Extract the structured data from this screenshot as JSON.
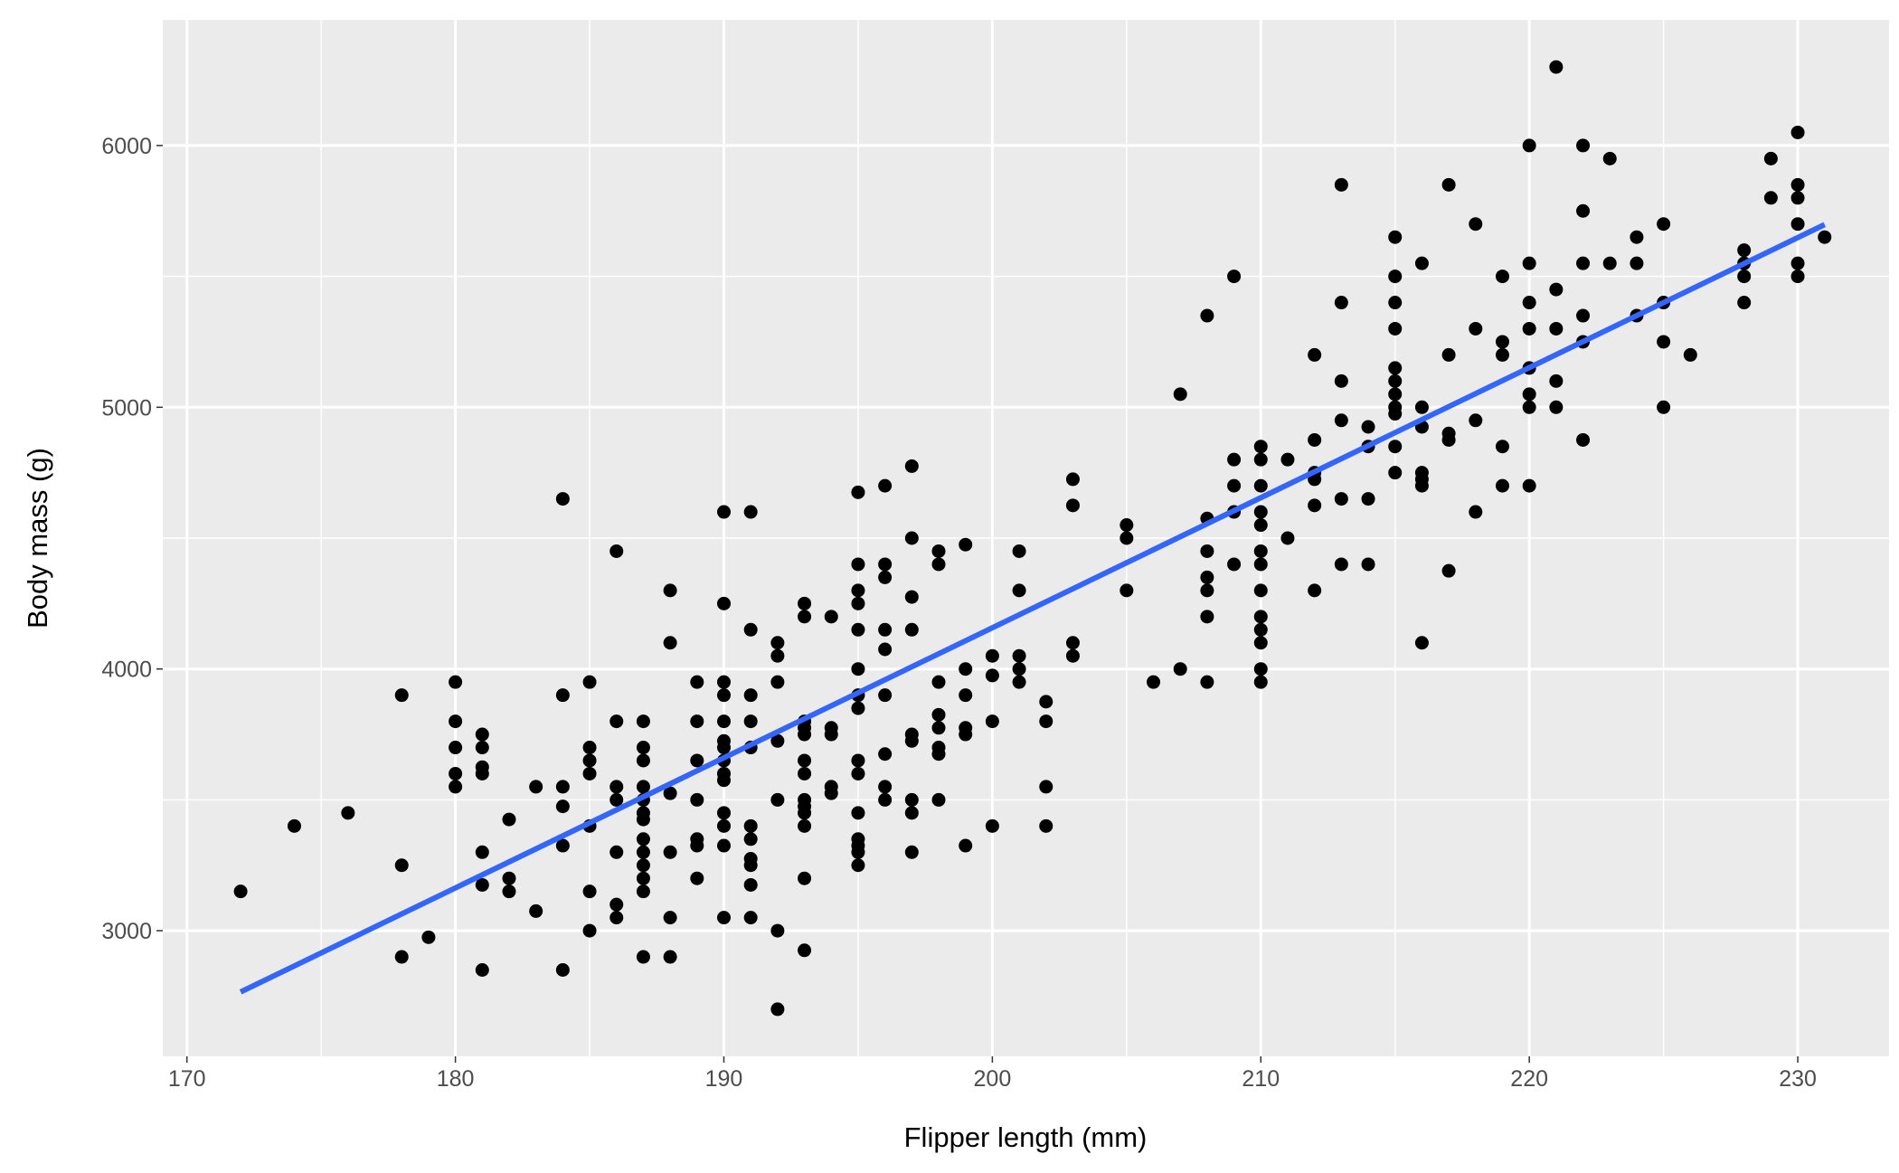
{
  "chart_data": {
    "type": "scatter",
    "title": "",
    "xlabel": "Flipper length (mm)",
    "ylabel": "Body mass (g)",
    "xlim": [
      169.1,
      233.4
    ],
    "ylim": [
      2520,
      6480
    ],
    "xticks": [
      170,
      180,
      190,
      200,
      210,
      220,
      230
    ],
    "yticks": [
      3000,
      4000,
      5000,
      6000
    ],
    "xtick_labels": [
      "170",
      "180",
      "190",
      "200",
      "210",
      "220",
      "230"
    ],
    "ytick_labels": [
      "3000",
      "4000",
      "5000",
      "6000"
    ],
    "grid": true,
    "legend": "none",
    "colors": {
      "panel": "#EBEBEB",
      "grid": "#FFFFFF",
      "points": "#000000",
      "fit_line": "#3366FF"
    },
    "fit_line": {
      "type": "linear",
      "x": [
        172,
        231
      ],
      "y": [
        2766,
        5698
      ]
    },
    "points": [
      {
        "x": 172,
        "y": [
          3150
        ]
      },
      {
        "x": 174,
        "y": [
          3400
        ]
      },
      {
        "x": 176,
        "y": [
          3450
        ]
      },
      {
        "x": 178,
        "y": [
          3900,
          3250,
          2900
        ]
      },
      {
        "x": 179,
        "y": [
          2975
        ]
      },
      {
        "x": 180,
        "y": [
          3950,
          3800,
          3700,
          3600,
          3550
        ]
      },
      {
        "x": 181,
        "y": [
          3750,
          3700,
          3625,
          3600,
          3300,
          3175,
          2850
        ]
      },
      {
        "x": 182,
        "y": [
          3425,
          3200,
          3150
        ]
      },
      {
        "x": 183,
        "y": [
          3550,
          3075
        ]
      },
      {
        "x": 184,
        "y": [
          4650,
          3900,
          3550,
          3475,
          3325,
          2850
        ]
      },
      {
        "x": 185,
        "y": [
          3950,
          3700,
          3650,
          3600,
          3400,
          3150,
          3000
        ]
      },
      {
        "x": 186,
        "y": [
          4450,
          3800,
          3550,
          3500,
          3300,
          3100,
          3050
        ]
      },
      {
        "x": 187,
        "y": [
          3800,
          3700,
          3650,
          3550,
          3500,
          3450,
          3425,
          3350,
          3300,
          3250,
          3200,
          3150,
          2900
        ]
      },
      {
        "x": 188,
        "y": [
          4300,
          4100,
          3525,
          3300,
          3050,
          2900
        ]
      },
      {
        "x": 189,
        "y": [
          3950,
          3800,
          3650,
          3500,
          3350,
          3325,
          3200
        ]
      },
      {
        "x": 190,
        "y": [
          4600,
          4250,
          3950,
          3900,
          3800,
          3725,
          3700,
          3650,
          3600,
          3575,
          3450,
          3400,
          3325,
          3050
        ]
      },
      {
        "x": 191,
        "y": [
          4600,
          4150,
          3900,
          3800,
          3700,
          3400,
          3350,
          3275,
          3250,
          3175,
          3050
        ]
      },
      {
        "x": 192,
        "y": [
          4100,
          4050,
          3950,
          3725,
          3500,
          3000,
          2700
        ]
      },
      {
        "x": 193,
        "y": [
          4250,
          4200,
          3800,
          3775,
          3750,
          3650,
          3600,
          3500,
          3475,
          3450,
          3400,
          3200,
          2925
        ]
      },
      {
        "x": 194,
        "y": [
          4200,
          3775,
          3750,
          3550,
          3525
        ]
      },
      {
        "x": 195,
        "y": [
          4675,
          4400,
          4300,
          4250,
          4150,
          4000,
          3900,
          3850,
          3650,
          3600,
          3450,
          3350,
          3325,
          3300,
          3250
        ]
      },
      {
        "x": 196,
        "y": [
          4700,
          4400,
          4350,
          4150,
          4075,
          3900,
          3675,
          3550,
          3500
        ]
      },
      {
        "x": 197,
        "y": [
          4775,
          4500,
          4275,
          4150,
          3750,
          3725,
          3500,
          3450,
          3300
        ]
      },
      {
        "x": 198,
        "y": [
          4450,
          4400,
          3950,
          3825,
          3775,
          3700,
          3675,
          3500
        ]
      },
      {
        "x": 199,
        "y": [
          4475,
          4000,
          3900,
          3775,
          3750,
          3325
        ]
      },
      {
        "x": 200,
        "y": [
          4050,
          3975,
          3800,
          3400
        ]
      },
      {
        "x": 201,
        "y": [
          4450,
          4300,
          4050,
          4000,
          3950
        ]
      },
      {
        "x": 202,
        "y": [
          3875,
          3800,
          3550,
          3400
        ]
      },
      {
        "x": 203,
        "y": [
          4725,
          4625,
          4100,
          4050
        ]
      },
      {
        "x": 205,
        "y": [
          4550,
          4500,
          4300
        ]
      },
      {
        "x": 206,
        "y": [
          3950
        ]
      },
      {
        "x": 207,
        "y": [
          5050,
          4000
        ]
      },
      {
        "x": 208,
        "y": [
          5350,
          4575,
          4450,
          4350,
          4300,
          4200,
          3950
        ]
      },
      {
        "x": 209,
        "y": [
          5500,
          4800,
          4700,
          4600,
          4400
        ]
      },
      {
        "x": 210,
        "y": [
          4850,
          4800,
          4700,
          4600,
          4550,
          4450,
          4400,
          4300,
          4200,
          4150,
          4100,
          4000,
          3950
        ]
      },
      {
        "x": 211,
        "y": [
          4800,
          4500
        ]
      },
      {
        "x": 212,
        "y": [
          5200,
          4875,
          4750,
          4725,
          4625,
          4300
        ]
      },
      {
        "x": 213,
        "y": [
          5850,
          5400,
          5100,
          4950,
          4650,
          4400
        ]
      },
      {
        "x": 214,
        "y": [
          4925,
          4850,
          4650,
          4400
        ]
      },
      {
        "x": 215,
        "y": [
          5650,
          5500,
          5400,
          5300,
          5150,
          5100,
          5050,
          5000,
          4975,
          4850,
          4750
        ]
      },
      {
        "x": 216,
        "y": [
          5550,
          5000,
          4925,
          4750,
          4725,
          4700,
          4100
        ]
      },
      {
        "x": 217,
        "y": [
          5850,
          5200,
          4900,
          4875,
          4375
        ]
      },
      {
        "x": 218,
        "y": [
          5700,
          5300,
          4950,
          4600
        ]
      },
      {
        "x": 219,
        "y": [
          5500,
          5250,
          5200,
          4850,
          4700
        ]
      },
      {
        "x": 220,
        "y": [
          6000,
          5550,
          5400,
          5300,
          5150,
          5050,
          5000,
          4700
        ]
      },
      {
        "x": 221,
        "y": [
          6300,
          5450,
          5300,
          5100,
          5000
        ]
      },
      {
        "x": 222,
        "y": [
          6000,
          5750,
          5550,
          5350,
          5250,
          4875
        ]
      },
      {
        "x": 223,
        "y": [
          5950,
          5550
        ]
      },
      {
        "x": 224,
        "y": [
          5650,
          5550,
          5350
        ]
      },
      {
        "x": 225,
        "y": [
          5700,
          5400,
          5250,
          5000
        ]
      },
      {
        "x": 226,
        "y": [
          5200
        ]
      },
      {
        "x": 228,
        "y": [
          5600,
          5550,
          5500,
          5400
        ]
      },
      {
        "x": 229,
        "y": [
          5950,
          5800
        ]
      },
      {
        "x": 230,
        "y": [
          6050,
          5850,
          5800,
          5700,
          5550,
          5500
        ]
      },
      {
        "x": 231,
        "y": [
          5650
        ]
      }
    ]
  }
}
